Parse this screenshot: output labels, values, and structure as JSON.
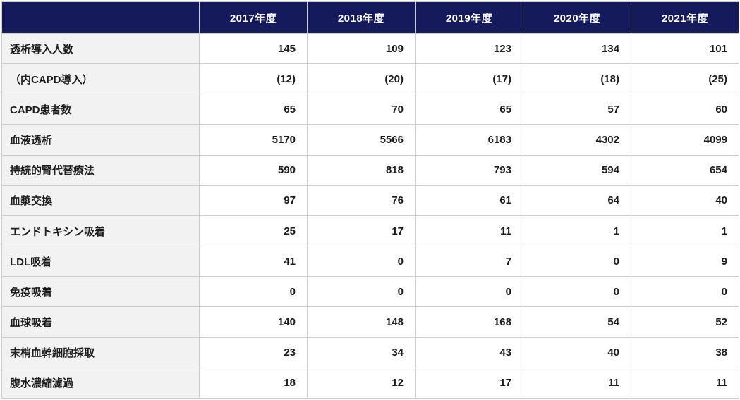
{
  "colors": {
    "header_bg": "#141a5c",
    "header_text": "#ffffff",
    "label_cell_bg": "#f2f2f2",
    "value_cell_bg": "#ffffff",
    "body_text": "#1c1c1c",
    "border": "#cdcdcd"
  },
  "chart_data": {
    "type": "table",
    "title": "",
    "columns": [
      "2017年度",
      "2018年度",
      "2019年度",
      "2020年度",
      "2021年度"
    ],
    "rows": [
      {
        "label": "透析導入人数",
        "values": [
          "145",
          "109",
          "123",
          "134",
          "101"
        ]
      },
      {
        "label": "（内CAPD導入）",
        "values": [
          "(12)",
          "(20)",
          "(17)",
          "(18)",
          "(25)"
        ]
      },
      {
        "label": "CAPD患者数",
        "values": [
          "65",
          "70",
          "65",
          "57",
          "60"
        ]
      },
      {
        "label": "血液透析",
        "values": [
          "5170",
          "5566",
          "6183",
          "4302",
          "4099"
        ]
      },
      {
        "label": "持続的腎代替療法",
        "values": [
          "590",
          "818",
          "793",
          "594",
          "654"
        ]
      },
      {
        "label": "血漿交換",
        "values": [
          "97",
          "76",
          "61",
          "64",
          "40"
        ]
      },
      {
        "label": "エンドトキシン吸着",
        "values": [
          "25",
          "17",
          "11",
          "1",
          "1"
        ]
      },
      {
        "label": "LDL吸着",
        "values": [
          "41",
          "0",
          "7",
          "0",
          "9"
        ]
      },
      {
        "label": "免疫吸着",
        "values": [
          "0",
          "0",
          "0",
          "0",
          "0"
        ]
      },
      {
        "label": "血球吸着",
        "values": [
          "140",
          "148",
          "168",
          "54",
          "52"
        ]
      },
      {
        "label": "末梢血幹細胞採取",
        "values": [
          "23",
          "34",
          "43",
          "40",
          "38"
        ]
      },
      {
        "label": "腹水濃縮濾過",
        "values": [
          "18",
          "12",
          "17",
          "11",
          "11"
        ]
      }
    ]
  }
}
